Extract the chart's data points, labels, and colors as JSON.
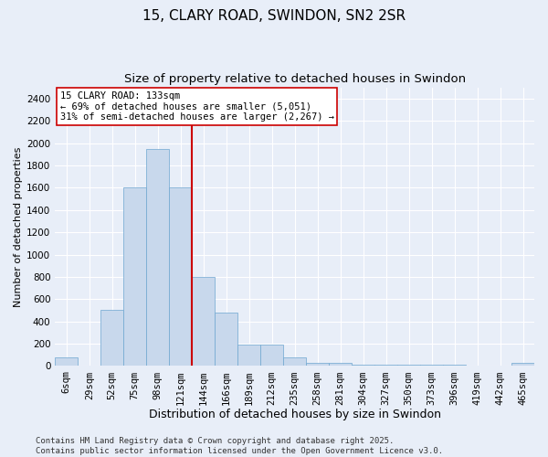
{
  "title1": "15, CLARY ROAD, SWINDON, SN2 2SR",
  "title2": "Size of property relative to detached houses in Swindon",
  "xlabel": "Distribution of detached houses by size in Swindon",
  "ylabel": "Number of detached properties",
  "categories": [
    "6sqm",
    "29sqm",
    "52sqm",
    "75sqm",
    "98sqm",
    "121sqm",
    "144sqm",
    "166sqm",
    "189sqm",
    "212sqm",
    "235sqm",
    "258sqm",
    "281sqm",
    "304sqm",
    "327sqm",
    "350sqm",
    "373sqm",
    "396sqm",
    "419sqm",
    "442sqm",
    "465sqm"
  ],
  "values": [
    75,
    0,
    500,
    1600,
    1950,
    1600,
    800,
    480,
    195,
    195,
    75,
    30,
    30,
    15,
    15,
    15,
    8,
    8,
    0,
    0,
    30
  ],
  "bar_color": "#c8d8ec",
  "bar_edge_color": "#6ea6d0",
  "vline_x_index": 5.5,
  "vline_color": "#cc0000",
  "annotation_text": "15 CLARY ROAD: 133sqm\n← 69% of detached houses are smaller (5,051)\n31% of semi-detached houses are larger (2,267) →",
  "annotation_box_color": "white",
  "annotation_box_edge": "#cc0000",
  "ylim": [
    0,
    2500
  ],
  "yticks": [
    0,
    200,
    400,
    600,
    800,
    1000,
    1200,
    1400,
    1600,
    1800,
    2000,
    2200,
    2400
  ],
  "footer": "Contains HM Land Registry data © Crown copyright and database right 2025.\nContains public sector information licensed under the Open Government Licence v3.0.",
  "bg_color": "#e8eef8",
  "plot_bg_color": "#e8eef8",
  "grid_color": "white",
  "title1_fontsize": 11,
  "title2_fontsize": 9.5,
  "xlabel_fontsize": 9,
  "ylabel_fontsize": 8,
  "tick_fontsize": 7.5,
  "annot_fontsize": 7.5,
  "footer_fontsize": 6.5
}
